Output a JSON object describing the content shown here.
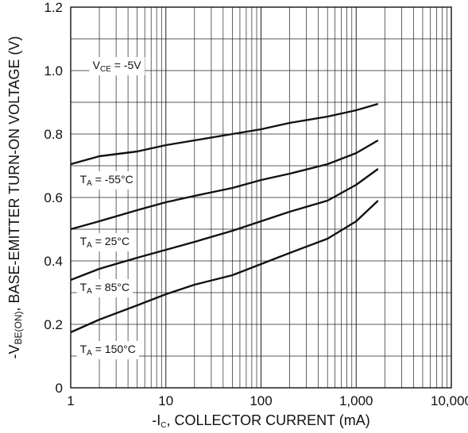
{
  "chart_data": {
    "type": "line",
    "xscale": "log",
    "xlim": [
      1,
      10000
    ],
    "ylim": [
      0,
      1.2
    ],
    "grid": true,
    "xlabel": {
      "prefix": "-I",
      "sub": "C",
      "rest": ", COLLECTOR CURRENT (mA)"
    },
    "ylabel": {
      "prefix": "-V",
      "sub": "BE(ON)",
      "rest": ", BASE-EMITTER TURN-ON VOLTAGE (V)"
    },
    "x_ticks": [
      {
        "value": 1,
        "label": "1"
      },
      {
        "value": 10,
        "label": "10"
      },
      {
        "value": 100,
        "label": "100"
      },
      {
        "value": 1000,
        "label": "1,000"
      },
      {
        "value": 10000,
        "label": "10,000"
      }
    ],
    "y_ticks": [
      {
        "value": 0,
        "label": "0"
      },
      {
        "value": 0.2,
        "label": "0.2"
      },
      {
        "value": 0.4,
        "label": "0.4"
      },
      {
        "value": 0.6,
        "label": "0.6"
      },
      {
        "value": 0.8,
        "label": "0.8"
      },
      {
        "value": 1.0,
        "label": "1.0"
      },
      {
        "value": 1.2,
        "label": "1.2"
      }
    ],
    "annotations": [
      {
        "main": "V",
        "sub": "CE",
        "rest": " = -5V",
        "x": 1.7,
        "y": 1.005
      },
      {
        "main": "T",
        "sub": "A",
        "rest": " = -55°C",
        "x": 1.25,
        "y": 0.645
      },
      {
        "main": "T",
        "sub": "A",
        "rest": " = 25°C",
        "x": 1.25,
        "y": 0.45
      },
      {
        "main": "T",
        "sub": "A",
        "rest": " = 85°C",
        "x": 1.25,
        "y": 0.305
      },
      {
        "main": "T",
        "sub": "A",
        "rest": " = 150°C",
        "x": 1.25,
        "y": 0.11
      }
    ],
    "series": [
      {
        "points": [
          [
            1,
            0.705
          ],
          [
            2,
            0.73
          ],
          [
            5,
            0.745
          ],
          [
            10,
            0.765
          ],
          [
            20,
            0.78
          ],
          [
            50,
            0.8
          ],
          [
            100,
            0.815
          ],
          [
            200,
            0.835
          ],
          [
            500,
            0.855
          ],
          [
            1000,
            0.875
          ],
          [
            1700,
            0.895
          ]
        ]
      },
      {
        "points": [
          [
            1,
            0.5
          ],
          [
            2,
            0.525
          ],
          [
            5,
            0.56
          ],
          [
            10,
            0.585
          ],
          [
            20,
            0.605
          ],
          [
            50,
            0.63
          ],
          [
            100,
            0.655
          ],
          [
            200,
            0.675
          ],
          [
            500,
            0.705
          ],
          [
            1000,
            0.74
          ],
          [
            1700,
            0.78
          ]
        ]
      },
      {
        "points": [
          [
            1,
            0.34
          ],
          [
            2,
            0.375
          ],
          [
            5,
            0.41
          ],
          [
            10,
            0.435
          ],
          [
            20,
            0.46
          ],
          [
            50,
            0.495
          ],
          [
            100,
            0.525
          ],
          [
            200,
            0.555
          ],
          [
            500,
            0.59
          ],
          [
            1000,
            0.64
          ],
          [
            1700,
            0.69
          ]
        ]
      },
      {
        "points": [
          [
            1,
            0.175
          ],
          [
            2,
            0.215
          ],
          [
            5,
            0.26
          ],
          [
            10,
            0.295
          ],
          [
            20,
            0.325
          ],
          [
            50,
            0.355
          ],
          [
            100,
            0.39
          ],
          [
            200,
            0.425
          ],
          [
            500,
            0.47
          ],
          [
            1000,
            0.525
          ],
          [
            1700,
            0.59
          ]
        ]
      }
    ]
  }
}
